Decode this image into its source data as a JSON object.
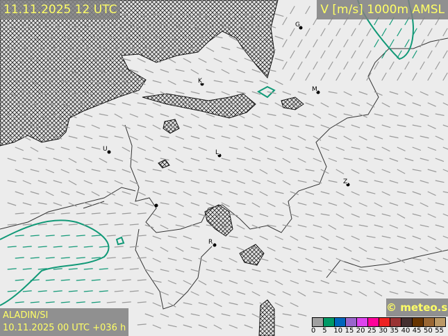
{
  "header": {
    "valid_time": "11.11.2025 12 UTC",
    "parameter": "V [m/s] 1000m AMSL"
  },
  "footer": {
    "model": "ALADIN/SI",
    "run": "10.11.2025 00 UTC +036 h",
    "copyright": "© meteo.si"
  },
  "legend": {
    "ticks": [
      "0",
      "5",
      "10",
      "15",
      "20",
      "25",
      "30",
      "35",
      "40",
      "45",
      "50",
      "55"
    ],
    "colors": [
      "#a0a0a0",
      "#009966",
      "#0066bb",
      "#9966cc",
      "#dd44ee",
      "#ff0099",
      "#ee2222",
      "#993333",
      "#442e2e",
      "#663300",
      "#996633",
      "#bb9966"
    ]
  },
  "map": {
    "background": "#ececec",
    "contour_color": "#119977",
    "cities": [
      "G",
      "K",
      "M",
      "U",
      "L",
      "Z",
      "R"
    ]
  }
}
